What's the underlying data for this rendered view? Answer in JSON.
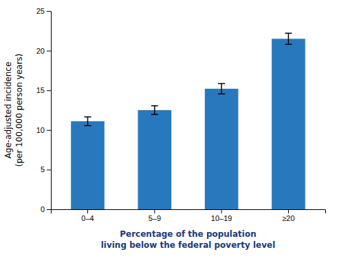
{
  "chart_data": {
    "type": "bar",
    "categories": [
      "0–4",
      "5–9",
      "10–19",
      "≥20"
    ],
    "values": [
      11.1,
      12.5,
      15.2,
      21.5
    ],
    "errors": [
      0.55,
      0.55,
      0.65,
      0.7
    ],
    "color": "#2878BE",
    "x_label": [
      "Percentage of the population",
      "living below the federal poverty level"
    ],
    "y_label": [
      "Age-adjusted incidence",
      "(per 100,000 person years)"
    ],
    "ylim": [
      0,
      25
    ],
    "yticks": [
      0,
      5,
      10,
      15,
      20,
      25
    ],
    "grid": false
  }
}
